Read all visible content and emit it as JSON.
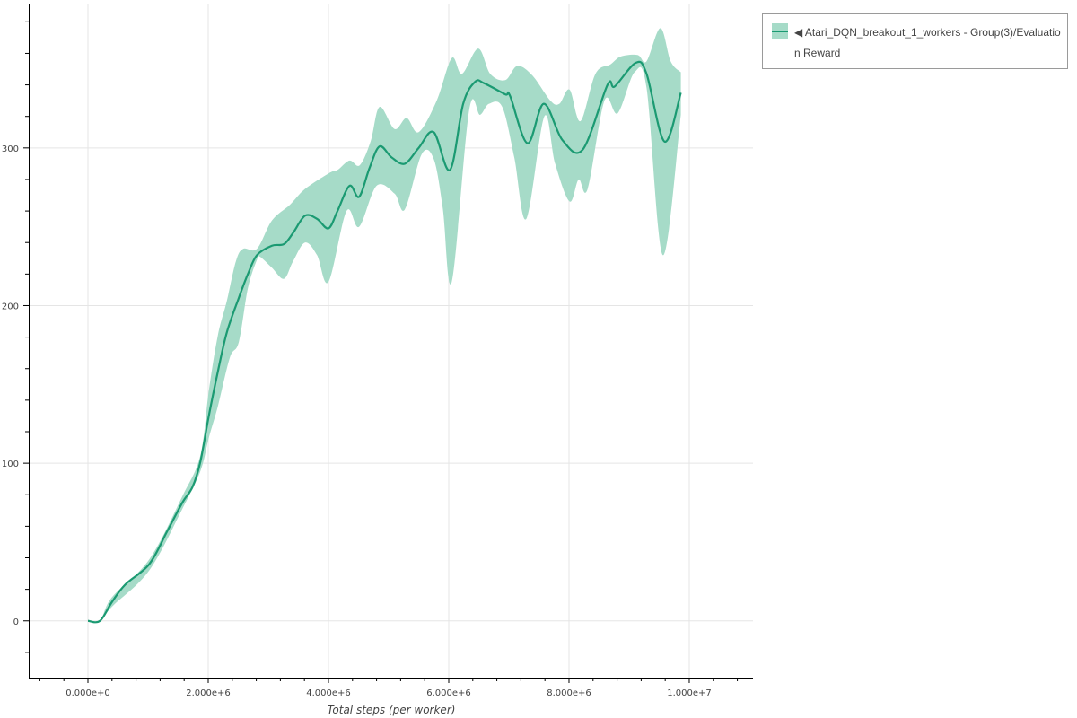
{
  "chart_data": {
    "type": "line",
    "title": "",
    "xlabel": "Total steps (per worker)",
    "ylabel": "",
    "xlim": [
      -985000,
      11060000
    ],
    "ylim": [
      -36,
      391
    ],
    "grid": true,
    "legend_position": "top-right-outside",
    "x_ticks": [
      0,
      2000000,
      4000000,
      6000000,
      8000000,
      10000000
    ],
    "x_tick_labels": [
      "0.000e+0",
      "2.000e+6",
      "4.000e+6",
      "6.000e+6",
      "8.000e+6",
      "1.000e+7"
    ],
    "y_ticks": [
      0,
      100,
      200,
      300
    ],
    "y_tick_labels": [
      "0",
      "100",
      "200",
      "300"
    ],
    "colors": {
      "line": "#1b9a72",
      "band": "#a6dbc8"
    },
    "series": [
      {
        "name": "◀ Atari_DQN_breakout_1_workers - Group(3)/Evaluation Reward",
        "mean": [
          [
            0,
            0
          ],
          [
            200000,
            0
          ],
          [
            400000,
            12
          ],
          [
            620000,
            23
          ],
          [
            1020000,
            36
          ],
          [
            1320000,
            57
          ],
          [
            1570000,
            75
          ],
          [
            1740000,
            85
          ],
          [
            1870000,
            101
          ],
          [
            2010000,
            130
          ],
          [
            2160000,
            158
          ],
          [
            2310000,
            183
          ],
          [
            2510000,
            205
          ],
          [
            2660000,
            220
          ],
          [
            2810000,
            232
          ],
          [
            3060000,
            238
          ],
          [
            3260000,
            239
          ],
          [
            3410000,
            246
          ],
          [
            3610000,
            257
          ],
          [
            3810000,
            255
          ],
          [
            4000000,
            249
          ],
          [
            4150000,
            260
          ],
          [
            4350000,
            276
          ],
          [
            4510000,
            269
          ],
          [
            4680000,
            287
          ],
          [
            4850000,
            301
          ],
          [
            5050000,
            294
          ],
          [
            5270000,
            290
          ],
          [
            5500000,
            300
          ],
          [
            5750000,
            310
          ],
          [
            6020000,
            286
          ],
          [
            6240000,
            328
          ],
          [
            6440000,
            342
          ],
          [
            6590000,
            341
          ],
          [
            6940000,
            334
          ],
          [
            7020000,
            333
          ],
          [
            7310000,
            303
          ],
          [
            7580000,
            328
          ],
          [
            7890000,
            305
          ],
          [
            8230000,
            299
          ],
          [
            8640000,
            340
          ],
          [
            8760000,
            339
          ],
          [
            9110000,
            354
          ],
          [
            9290000,
            347
          ],
          [
            9590000,
            304
          ],
          [
            9860000,
            335
          ]
        ],
        "upper": [
          [
            0,
            0
          ],
          [
            200000,
            0
          ],
          [
            400000,
            15
          ],
          [
            1020000,
            39
          ],
          [
            1570000,
            79
          ],
          [
            1870000,
            105
          ],
          [
            2010000,
            146
          ],
          [
            2160000,
            181
          ],
          [
            2310000,
            203
          ],
          [
            2460000,
            228
          ],
          [
            2580000,
            236
          ],
          [
            2810000,
            236
          ],
          [
            3060000,
            254
          ],
          [
            3360000,
            264
          ],
          [
            3610000,
            274
          ],
          [
            4010000,
            284
          ],
          [
            4150000,
            286
          ],
          [
            4350000,
            292
          ],
          [
            4520000,
            289
          ],
          [
            4700000,
            304
          ],
          [
            4850000,
            326
          ],
          [
            5100000,
            312
          ],
          [
            5300000,
            319
          ],
          [
            5500000,
            310
          ],
          [
            5800000,
            330
          ],
          [
            6050000,
            357
          ],
          [
            6220000,
            347
          ],
          [
            6490000,
            363
          ],
          [
            6690000,
            347
          ],
          [
            6940000,
            343
          ],
          [
            7140000,
            352
          ],
          [
            7390000,
            346
          ],
          [
            7690000,
            330
          ],
          [
            7840000,
            328
          ],
          [
            8010000,
            337
          ],
          [
            8190000,
            317
          ],
          [
            8440000,
            347
          ],
          [
            8690000,
            353
          ],
          [
            8860000,
            358
          ],
          [
            9140000,
            359
          ],
          [
            9290000,
            355
          ],
          [
            9520000,
            376
          ],
          [
            9690000,
            355
          ],
          [
            9860000,
            348
          ]
        ],
        "lower": [
          [
            0,
            0
          ],
          [
            200000,
            0
          ],
          [
            400000,
            9
          ],
          [
            1020000,
            32
          ],
          [
            1570000,
            71
          ],
          [
            1870000,
            95
          ],
          [
            2010000,
            116
          ],
          [
            2160000,
            136
          ],
          [
            2360000,
            167
          ],
          [
            2510000,
            177
          ],
          [
            2660000,
            211
          ],
          [
            2810000,
            229
          ],
          [
            2860000,
            231
          ],
          [
            3060000,
            224
          ],
          [
            3260000,
            217
          ],
          [
            3410000,
            228
          ],
          [
            3610000,
            240
          ],
          [
            3810000,
            232
          ],
          [
            4000000,
            215
          ],
          [
            4300000,
            260
          ],
          [
            4510000,
            250
          ],
          [
            4800000,
            276
          ],
          [
            5100000,
            271
          ],
          [
            5270000,
            261
          ],
          [
            5550000,
            296
          ],
          [
            5750000,
            293
          ],
          [
            5900000,
            262
          ],
          [
            6050000,
            215
          ],
          [
            6340000,
            324
          ],
          [
            6520000,
            321
          ],
          [
            6670000,
            328
          ],
          [
            6890000,
            326
          ],
          [
            7090000,
            294
          ],
          [
            7290000,
            255
          ],
          [
            7590000,
            320
          ],
          [
            7770000,
            290
          ],
          [
            8010000,
            266
          ],
          [
            8160000,
            280
          ],
          [
            8310000,
            274
          ],
          [
            8590000,
            330
          ],
          [
            8810000,
            322
          ],
          [
            9090000,
            348
          ],
          [
            9290000,
            338
          ],
          [
            9560000,
            232
          ],
          [
            9860000,
            321
          ]
        ]
      }
    ]
  },
  "legend": {
    "label": "◀ Atari_DQN_breakout_1_workers - Group(3)/Evaluation Reward"
  }
}
